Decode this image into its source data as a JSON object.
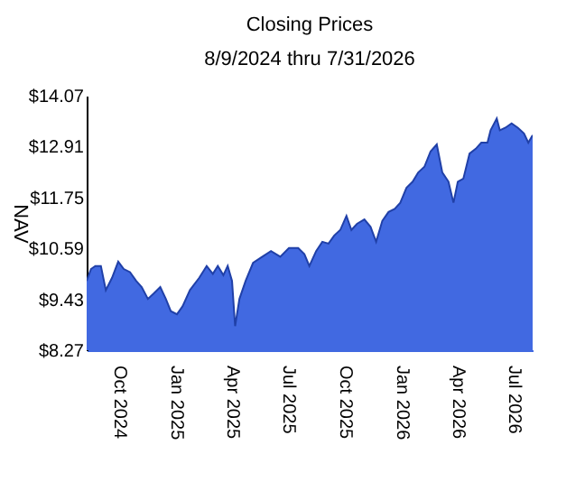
{
  "chart_data": {
    "type": "area",
    "title": "Closing Prices",
    "subtitle": "8/9/2024 thru 7/31/2026",
    "ylabel": "NAV",
    "x": [
      "2024-08-09",
      "2024-08-16",
      "2024-08-23",
      "2024-09-01",
      "2024-09-09",
      "2024-09-19",
      "2024-09-29",
      "2024-10-08",
      "2024-10-18",
      "2024-10-28",
      "2024-11-06",
      "2024-11-16",
      "2024-11-26",
      "2024-12-06",
      "2024-12-15",
      "2024-12-23",
      "2025-01-02",
      "2025-01-11",
      "2025-01-23",
      "2025-02-07",
      "2025-02-19",
      "2025-03-01",
      "2025-03-09",
      "2025-03-18",
      "2025-03-25",
      "2025-04-01",
      "2025-04-06",
      "2025-04-13",
      "2025-04-23",
      "2025-05-05",
      "2025-05-20",
      "2025-06-03",
      "2025-06-18",
      "2025-07-02",
      "2025-07-17",
      "2025-07-27",
      "2025-08-04",
      "2025-08-15",
      "2025-08-25",
      "2025-09-04",
      "2025-09-13",
      "2025-09-23",
      "2025-10-03",
      "2025-10-11",
      "2025-10-20",
      "2025-11-01",
      "2025-11-11",
      "2025-11-20",
      "2025-11-30",
      "2025-12-10",
      "2025-12-20",
      "2025-12-29",
      "2026-01-08",
      "2026-01-18",
      "2026-01-27",
      "2026-02-06",
      "2026-02-16",
      "2026-02-26",
      "2026-03-07",
      "2026-03-17",
      "2026-03-25",
      "2026-04-01",
      "2026-04-10",
      "2026-04-20",
      "2026-04-30",
      "2026-05-09",
      "2026-05-19",
      "2026-05-24",
      "2026-06-03",
      "2026-06-08",
      "2026-06-17",
      "2026-06-27",
      "2026-07-07",
      "2026-07-17",
      "2026-07-24",
      "2026-07-31"
    ],
    "series": [
      {
        "color": "#4169e1",
        "values": [
          9.85,
          10.12,
          10.19,
          10.19,
          9.64,
          9.92,
          10.29,
          10.12,
          10.05,
          9.85,
          9.71,
          9.44,
          9.57,
          9.71,
          9.44,
          9.16,
          9.09,
          9.27,
          9.64,
          9.92,
          10.19,
          10.01,
          10.19,
          9.98,
          10.19,
          9.85,
          8.82,
          9.44,
          9.85,
          10.26,
          10.4,
          10.53,
          10.4,
          10.6,
          10.6,
          10.46,
          10.19,
          10.53,
          10.74,
          10.7,
          10.88,
          11.01,
          11.33,
          11.01,
          11.15,
          11.25,
          11.08,
          10.74,
          11.22,
          11.42,
          11.49,
          11.63,
          11.97,
          12.11,
          12.32,
          12.45,
          12.8,
          12.96,
          12.32,
          12.11,
          11.63,
          12.11,
          12.18,
          12.75,
          12.86,
          13.0,
          13.0,
          13.28,
          13.55,
          13.28,
          13.34,
          13.44,
          13.34,
          13.21,
          13.0,
          13.17
        ]
      }
    ],
    "xlim": [
      "2024-08-09",
      "2026-07-31"
    ],
    "xticks": [
      {
        "value": "2024-10-01",
        "label": "Oct 2024"
      },
      {
        "value": "2025-01-01",
        "label": "Jan 2025"
      },
      {
        "value": "2025-04-01",
        "label": "Apr 2025"
      },
      {
        "value": "2025-07-01",
        "label": "Jul 2025"
      },
      {
        "value": "2025-10-01",
        "label": "Oct 2025"
      },
      {
        "value": "2026-01-01",
        "label": "Jan 2026"
      },
      {
        "value": "2026-04-01",
        "label": "Apr 2026"
      },
      {
        "value": "2026-07-01",
        "label": "Jul 2026"
      }
    ],
    "ylim": [
      8.27,
      14.07
    ],
    "yticks": [
      {
        "value": 8.27,
        "label": "$8.27"
      },
      {
        "value": 9.43,
        "label": "$9.43"
      },
      {
        "value": 10.59,
        "label": "$10.59"
      },
      {
        "value": 11.75,
        "label": "$11.75"
      },
      {
        "value": 12.91,
        "label": "$12.91"
      },
      {
        "value": 14.07,
        "label": "$14.07"
      }
    ],
    "grid": false
  }
}
